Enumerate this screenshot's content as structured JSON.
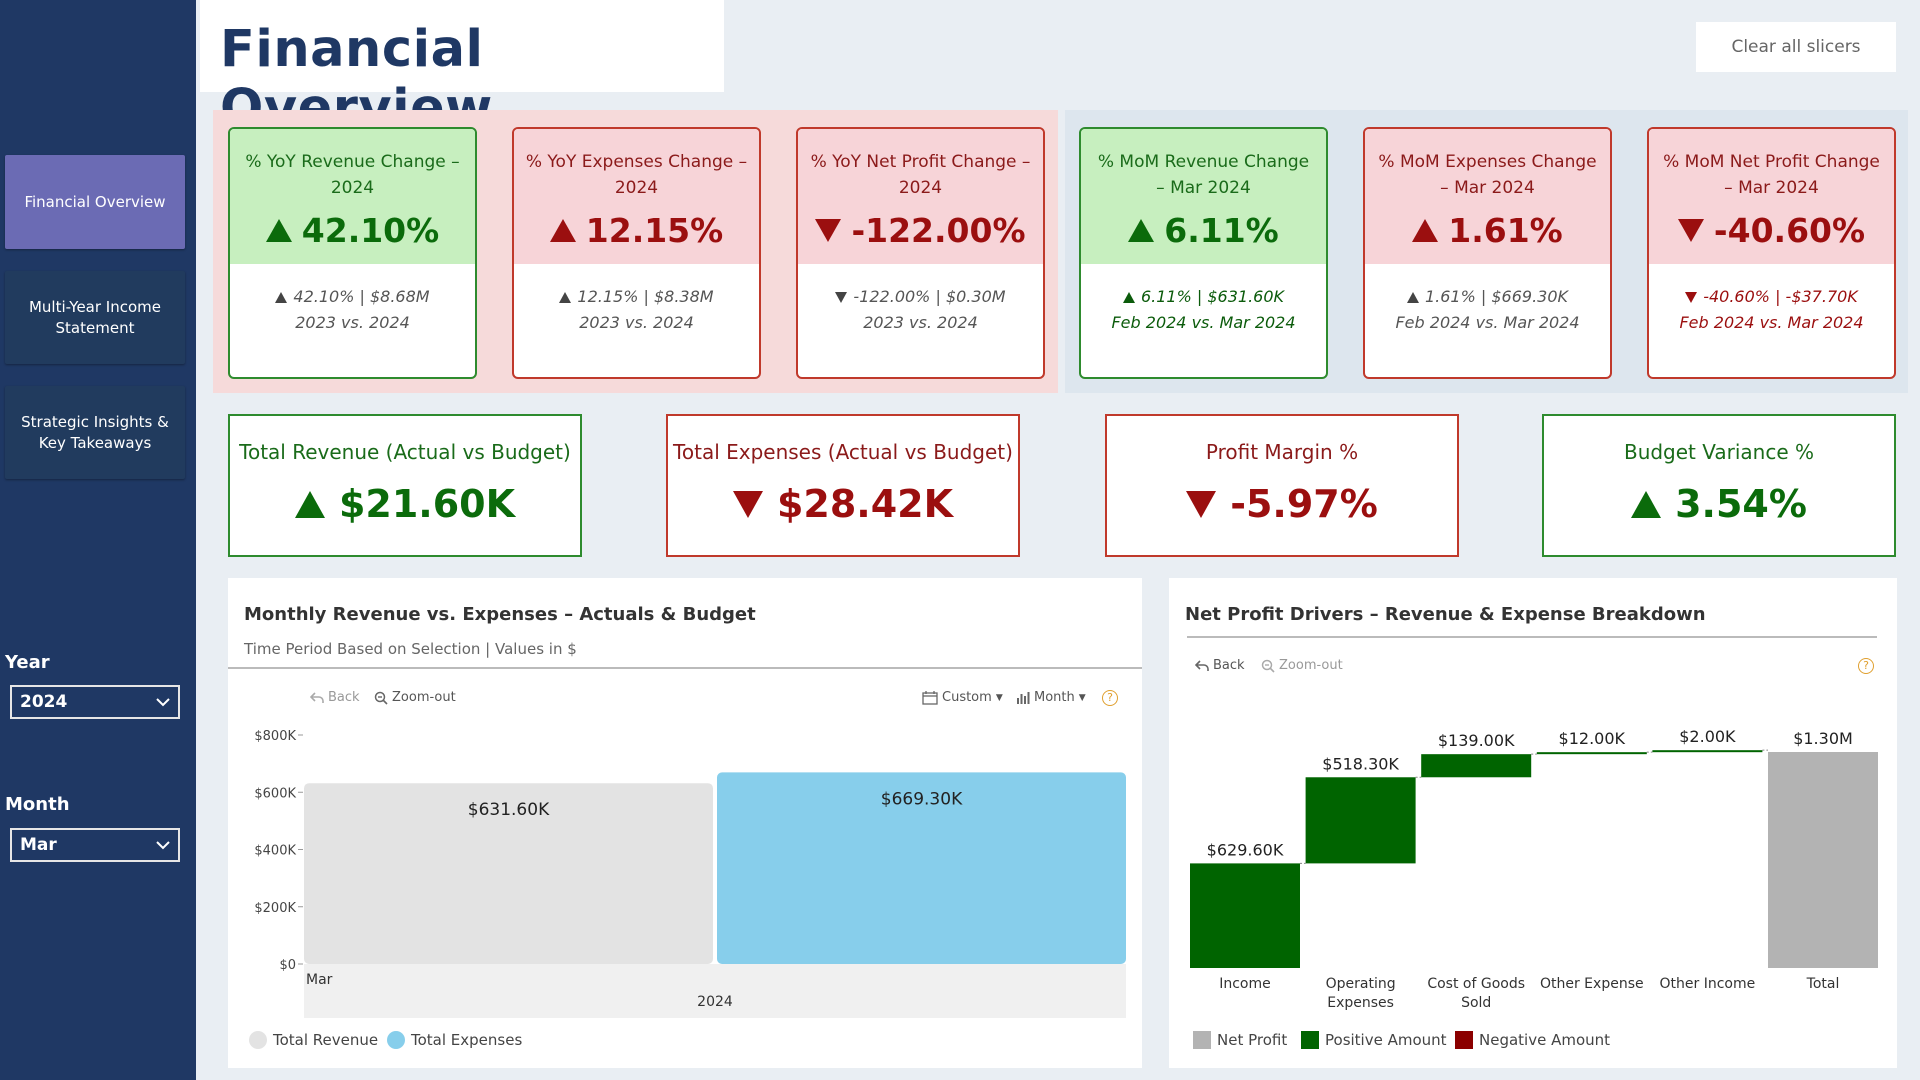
{
  "nav": {
    "items": [
      {
        "label": "Financial Overview"
      },
      {
        "label": "Multi-Year Income Statement"
      },
      {
        "label": "Strategic Insights & Key Takeaways"
      }
    ]
  },
  "slicers": {
    "year_label": "Year",
    "year_value": "2024",
    "month_label": "Month",
    "month_value": "Mar"
  },
  "header": {
    "title": "Financial Overview",
    "clear_label": "Clear all slicers"
  },
  "kpis": [
    {
      "title": "% YoY Revenue Change – 2024",
      "value": "42.10%",
      "detail": "42.10% | $8.68M",
      "period": "2023 vs. 2024"
    },
    {
      "title": "% YoY Expenses Change – 2024",
      "value": "12.15%",
      "detail": "12.15% | $8.38M",
      "period": "2023 vs. 2024"
    },
    {
      "title": "% YoY Net Profit Change – 2024",
      "value": "-122.00%",
      "detail": "-122.00% | $0.30M",
      "period": "2023 vs. 2024"
    },
    {
      "title": "% MoM Revenue Change – Mar 2024",
      "value": "6.11%",
      "detail": "6.11% | $631.60K",
      "period": "Feb 2024 vs. Mar 2024"
    },
    {
      "title": "% MoM Expenses Change – Mar 2024",
      "value": "1.61%",
      "detail": "1.61% | $669.30K",
      "period": "Feb 2024 vs. Mar 2024"
    },
    {
      "title": "% MoM Net Profit Change – Mar 2024",
      "value": "-40.60%",
      "detail": "-40.60% | -$37.70K",
      "period": "Feb 2024 vs. Mar 2024"
    }
  ],
  "cards": [
    {
      "title": "Total Revenue (Actual vs Budget)",
      "value": "$21.60K"
    },
    {
      "title": "Total Expenses (Actual vs Budget)",
      "value": "$28.42K"
    },
    {
      "title": "Profit Margin %",
      "value": "-5.97%"
    },
    {
      "title": "Budget Variance %",
      "value": "3.54%"
    }
  ],
  "left_panel": {
    "title": "Monthly Revenue vs. Expenses – Actuals & Budget",
    "subtitle": "Time Period Based on Selection | Values in $",
    "back": "Back",
    "zoom": "Zoom-out",
    "custom": "Custom",
    "month": "Month",
    "help": "?"
  },
  "right_panel": {
    "title": "Net Profit Drivers – Revenue & Expense Breakdown",
    "back": "Back",
    "zoom": "Zoom-out",
    "help": "?"
  },
  "colors": {
    "revenue": "#e3e3e3",
    "expenses": "#87ceeb",
    "net": "#b3b3b3",
    "positive": "#006400",
    "negative": "#8b0000"
  },
  "chart_data": [
    {
      "type": "bar",
      "title": "Monthly Revenue vs. Expenses – Actuals & Budget",
      "categories": [
        "Mar"
      ],
      "group_label": "2024",
      "series": [
        {
          "name": "Total Revenue",
          "values": [
            631.6
          ],
          "label": "$631.60K"
        },
        {
          "name": "Total Expenses",
          "values": [
            669.3
          ],
          "label": "$669.30K"
        }
      ],
      "yticks": [
        "$0",
        "$200K",
        "$400K",
        "$600K",
        "$800K"
      ],
      "ylim": [
        0,
        800
      ]
    },
    {
      "type": "bar",
      "subtype": "waterfall",
      "title": "Net Profit Drivers – Revenue & Expense Breakdown",
      "categories": [
        "Income",
        "Operating Expenses",
        "Cost of Goods Sold",
        "Other Expense",
        "Other Income",
        "Total"
      ],
      "cat_lines": [
        [
          "Income"
        ],
        [
          "Operating",
          "Expenses"
        ],
        [
          "Cost of Goods",
          "Sold"
        ],
        [
          "Other Expense"
        ],
        [
          "Other Income"
        ],
        [
          "Total"
        ]
      ],
      "values": [
        629.6,
        518.3,
        139.0,
        12.0,
        2.0,
        1300
      ],
      "labels": [
        "$629.60K",
        "$518.30K",
        "$139.00K",
        "$12.00K",
        "$2.00K",
        "$1.30M"
      ],
      "kinds": [
        "positive",
        "positive",
        "positive",
        "positive",
        "positive",
        "net"
      ],
      "legend": [
        "Net Profit",
        "Positive Amount",
        "Negative Amount"
      ]
    }
  ]
}
